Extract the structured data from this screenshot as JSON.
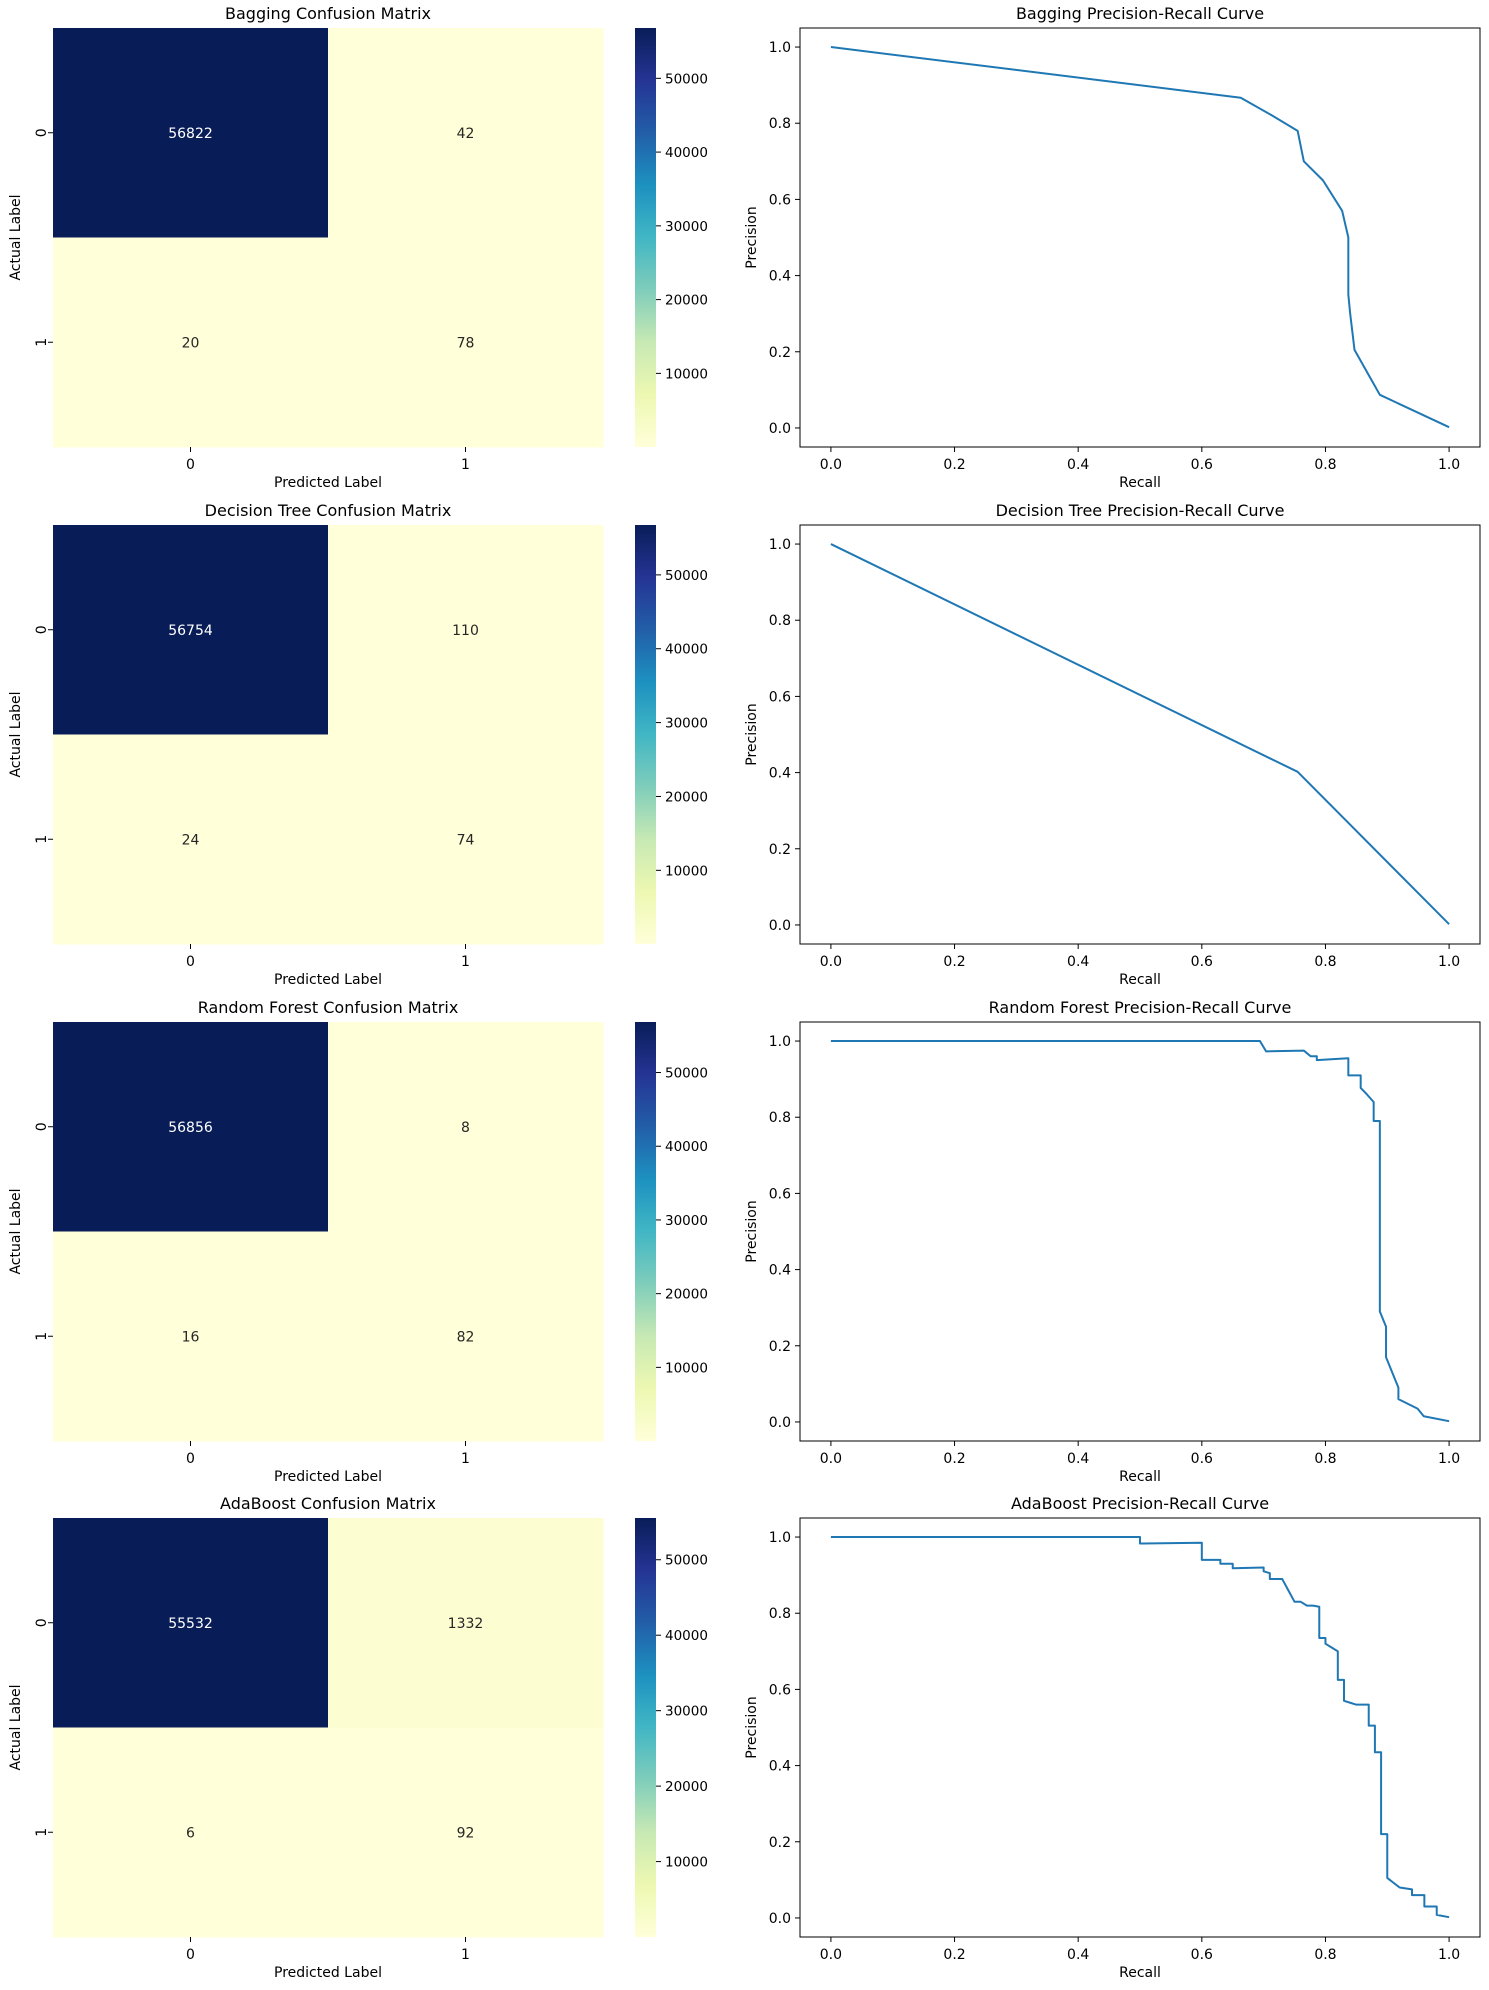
{
  "chart_data": [
    {
      "type": "heatmap",
      "title": "Bagging Confusion Matrix",
      "xlabel": "Predicted Label",
      "ylabel": "Actual Label",
      "x_ticks": [
        "0",
        "1"
      ],
      "y_ticks": [
        "0",
        "1"
      ],
      "values": [
        [
          56822,
          42
        ],
        [
          20,
          78
        ]
      ],
      "colorbar_ticks": [
        10000,
        20000,
        30000,
        40000,
        50000
      ],
      "colorbar_range": [
        20,
        56822
      ],
      "colormap": [
        "#ffffd9",
        "#edf8b1",
        "#c7e9b4",
        "#7fcdbb",
        "#41b6c4",
        "#1d91c0",
        "#225ea8",
        "#253494",
        "#081d58"
      ]
    },
    {
      "type": "line",
      "title": "Bagging Precision-Recall Curve",
      "xlabel": "Recall",
      "ylabel": "Precision",
      "xlim": [
        -0.05,
        1.05
      ],
      "ylim": [
        -0.05,
        1.05
      ],
      "x_ticks": [
        0.0,
        0.2,
        0.4,
        0.6,
        0.8,
        1.0
      ],
      "y_ticks": [
        0.0,
        0.2,
        0.4,
        0.6,
        0.8,
        1.0
      ],
      "line_color": "#1f77b4",
      "x": [
        0,
        0.663,
        0.714,
        0.755,
        0.765,
        0.796,
        0.827,
        0.837,
        0.837,
        0.84,
        0.847,
        0.888,
        1.0
      ],
      "y": [
        1.0,
        0.867,
        0.82,
        0.78,
        0.7,
        0.65,
        0.57,
        0.5,
        0.35,
        0.3,
        0.205,
        0.087,
        0.002
      ]
    },
    {
      "type": "heatmap",
      "title": "Decision Tree Confusion Matrix",
      "xlabel": "Predicted Label",
      "ylabel": "Actual Label",
      "x_ticks": [
        "0",
        "1"
      ],
      "y_ticks": [
        "0",
        "1"
      ],
      "values": [
        [
          56754,
          110
        ],
        [
          24,
          74
        ]
      ],
      "colorbar_ticks": [
        10000,
        20000,
        30000,
        40000,
        50000
      ],
      "colorbar_range": [
        24,
        56754
      ],
      "colormap": [
        "#ffffd9",
        "#edf8b1",
        "#c7e9b4",
        "#7fcdbb",
        "#41b6c4",
        "#1d91c0",
        "#225ea8",
        "#253494",
        "#081d58"
      ]
    },
    {
      "type": "line",
      "title": "Decision Tree Precision-Recall Curve",
      "xlabel": "Recall",
      "ylabel": "Precision",
      "xlim": [
        -0.05,
        1.05
      ],
      "ylim": [
        -0.05,
        1.05
      ],
      "x_ticks": [
        0.0,
        0.2,
        0.4,
        0.6,
        0.8,
        1.0
      ],
      "y_ticks": [
        0.0,
        0.2,
        0.4,
        0.6,
        0.8,
        1.0
      ],
      "line_color": "#1f77b4",
      "x": [
        0,
        0.755,
        1.0
      ],
      "y": [
        1.0,
        0.402,
        0.002
      ]
    },
    {
      "type": "heatmap",
      "title": "Random Forest Confusion Matrix",
      "xlabel": "Predicted Label",
      "ylabel": "Actual Label",
      "x_ticks": [
        "0",
        "1"
      ],
      "y_ticks": [
        "0",
        "1"
      ],
      "values": [
        [
          56856,
          8
        ],
        [
          16,
          82
        ]
      ],
      "colorbar_ticks": [
        10000,
        20000,
        30000,
        40000,
        50000
      ],
      "colorbar_range": [
        8,
        56856
      ],
      "colormap": [
        "#ffffd9",
        "#edf8b1",
        "#c7e9b4",
        "#7fcdbb",
        "#41b6c4",
        "#1d91c0",
        "#225ea8",
        "#253494",
        "#081d58"
      ]
    },
    {
      "type": "line",
      "title": "Random Forest Precision-Recall Curve",
      "xlabel": "Recall",
      "ylabel": "Precision",
      "xlim": [
        -0.05,
        1.05
      ],
      "ylim": [
        -0.05,
        1.05
      ],
      "x_ticks": [
        0.0,
        0.2,
        0.4,
        0.6,
        0.8,
        1.0
      ],
      "y_ticks": [
        0.0,
        0.2,
        0.4,
        0.6,
        0.8,
        1.0
      ],
      "line_color": "#1f77b4",
      "x": [
        0,
        0.694,
        0.704,
        0.765,
        0.776,
        0.786,
        0.786,
        0.816,
        0.837,
        0.837,
        0.857,
        0.857,
        0.867,
        0.878,
        0.878,
        0.888,
        0.888,
        0.898,
        0.898,
        0.918,
        0.918,
        0.949,
        0.959,
        1.0
      ],
      "y": [
        1.0,
        1.0,
        0.973,
        0.975,
        0.96,
        0.96,
        0.95,
        0.953,
        0.955,
        0.91,
        0.91,
        0.877,
        0.86,
        0.84,
        0.79,
        0.79,
        0.29,
        0.25,
        0.17,
        0.09,
        0.06,
        0.035,
        0.015,
        0.002
      ]
    },
    {
      "type": "heatmap",
      "title": "AdaBoost Confusion Matrix",
      "xlabel": "Predicted Label",
      "ylabel": "Actual Label",
      "x_ticks": [
        "0",
        "1"
      ],
      "y_ticks": [
        "0",
        "1"
      ],
      "values": [
        [
          55532,
          1332
        ],
        [
          6,
          92
        ]
      ],
      "colorbar_ticks": [
        10000,
        20000,
        30000,
        40000,
        50000
      ],
      "colorbar_range": [
        6,
        55532
      ],
      "colormap": [
        "#ffffd9",
        "#edf8b1",
        "#c7e9b4",
        "#7fcdbb",
        "#41b6c4",
        "#1d91c0",
        "#225ea8",
        "#253494",
        "#081d58"
      ]
    },
    {
      "type": "line",
      "title": "AdaBoost Precision-Recall Curve",
      "xlabel": "Recall",
      "ylabel": "Precision",
      "xlim": [
        -0.05,
        1.05
      ],
      "ylim": [
        -0.05,
        1.05
      ],
      "x_ticks": [
        0.0,
        0.2,
        0.4,
        0.6,
        0.8,
        1.0
      ],
      "y_ticks": [
        0.0,
        0.2,
        0.4,
        0.6,
        0.8,
        1.0
      ],
      "line_color": "#1f77b4",
      "x": [
        0,
        0.5,
        0.5,
        0.6,
        0.6,
        0.63,
        0.63,
        0.65,
        0.65,
        0.7,
        0.7,
        0.71,
        0.71,
        0.73,
        0.74,
        0.75,
        0.76,
        0.77,
        0.78,
        0.79,
        0.79,
        0.8,
        0.8,
        0.81,
        0.82,
        0.82,
        0.83,
        0.83,
        0.84,
        0.85,
        0.86,
        0.87,
        0.87,
        0.88,
        0.88,
        0.89,
        0.89,
        0.9,
        0.9,
        0.92,
        0.92,
        0.94,
        0.94,
        0.96,
        0.96,
        0.98,
        0.98,
        1.0
      ],
      "y": [
        1.0,
        1.0,
        0.983,
        0.985,
        0.94,
        0.94,
        0.93,
        0.93,
        0.918,
        0.92,
        0.91,
        0.905,
        0.89,
        0.89,
        0.86,
        0.83,
        0.83,
        0.82,
        0.82,
        0.817,
        0.735,
        0.735,
        0.72,
        0.71,
        0.7,
        0.625,
        0.625,
        0.57,
        0.565,
        0.56,
        0.56,
        0.56,
        0.505,
        0.505,
        0.435,
        0.435,
        0.22,
        0.22,
        0.105,
        0.08,
        0.08,
        0.075,
        0.06,
        0.06,
        0.03,
        0.03,
        0.008,
        0.002
      ]
    }
  ]
}
